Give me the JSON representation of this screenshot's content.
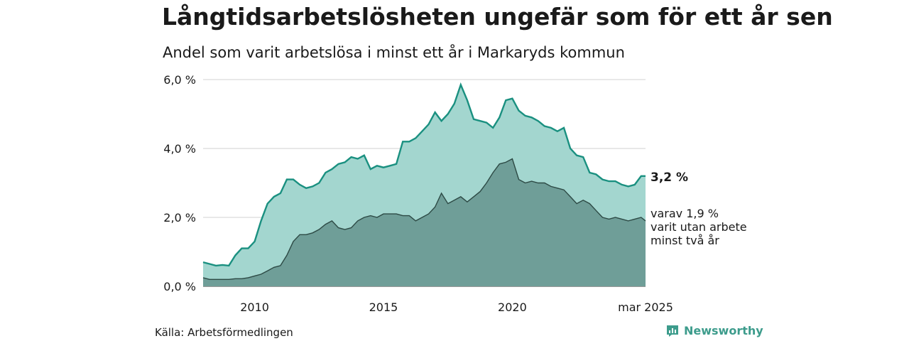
{
  "header": {
    "title": "Långtidsarbetslösheten ungefär som för ett år sen",
    "subtitle": "Andel som varit arbetslösa i minst ett år i Markaryds kommun"
  },
  "footer": {
    "source": "Källa: Arbetsförmedlingen",
    "brand": "Newsworthy"
  },
  "colors": {
    "total_fill": "#a3d6cf",
    "total_line": "#1a9080",
    "longterm_fill": "#6f9e98",
    "longterm_line": "#2d4a45",
    "grid": "#d9d9d9",
    "brand": "#3d9c8c"
  },
  "chart_data": {
    "type": "area",
    "x_unit": "year",
    "xlim": [
      2008.0,
      2025.17
    ],
    "ylim": [
      0,
      6
    ],
    "y_ticks": [
      {
        "value": 0,
        "label": "0,0 %"
      },
      {
        "value": 2,
        "label": "2,0 %"
      },
      {
        "value": 4,
        "label": "4,0 %"
      },
      {
        "value": 6,
        "label": "6,0 %"
      }
    ],
    "x_ticks": [
      {
        "value": 2010,
        "label": "2010"
      },
      {
        "value": 2015,
        "label": "2015"
      },
      {
        "value": 2020,
        "label": "2020"
      },
      {
        "value": 2025.17,
        "label": "mar 2025"
      }
    ],
    "grid": true,
    "series": [
      {
        "key": "total",
        "x": [
          2008.0,
          2008.25,
          2008.5,
          2008.75,
          2009.0,
          2009.25,
          2009.5,
          2009.75,
          2010.0,
          2010.25,
          2010.5,
          2010.75,
          2011.0,
          2011.25,
          2011.5,
          2011.75,
          2012.0,
          2012.25,
          2012.5,
          2012.75,
          2013.0,
          2013.25,
          2013.5,
          2013.75,
          2014.0,
          2014.25,
          2014.5,
          2014.75,
          2015.0,
          2015.25,
          2015.5,
          2015.75,
          2016.0,
          2016.25,
          2016.5,
          2016.75,
          2017.0,
          2017.25,
          2017.5,
          2017.75,
          2018.0,
          2018.25,
          2018.5,
          2018.75,
          2019.0,
          2019.25,
          2019.5,
          2019.75,
          2020.0,
          2020.25,
          2020.5,
          2020.75,
          2021.0,
          2021.25,
          2021.5,
          2021.75,
          2022.0,
          2022.25,
          2022.5,
          2022.75,
          2023.0,
          2023.25,
          2023.5,
          2023.75,
          2024.0,
          2024.25,
          2024.5,
          2024.75,
          2025.0,
          2025.17
        ],
        "values": [
          0.7,
          0.65,
          0.6,
          0.62,
          0.6,
          0.9,
          1.1,
          1.1,
          1.3,
          1.9,
          2.4,
          2.6,
          2.7,
          3.1,
          3.1,
          2.95,
          2.85,
          2.9,
          3.0,
          3.3,
          3.4,
          3.55,
          3.6,
          3.75,
          3.7,
          3.8,
          3.4,
          3.5,
          3.45,
          3.5,
          3.55,
          4.2,
          4.2,
          4.3,
          4.5,
          4.7,
          5.05,
          4.8,
          5.0,
          5.3,
          5.85,
          5.4,
          4.85,
          4.8,
          4.75,
          4.6,
          4.9,
          5.4,
          5.45,
          5.1,
          4.95,
          4.9,
          4.8,
          4.65,
          4.6,
          4.5,
          4.6,
          4.0,
          3.8,
          3.75,
          3.3,
          3.25,
          3.1,
          3.05,
          3.05,
          2.95,
          2.9,
          2.95,
          3.2,
          3.2
        ]
      },
      {
        "key": "longterm",
        "x": [
          2008.0,
          2008.25,
          2008.5,
          2008.75,
          2009.0,
          2009.25,
          2009.5,
          2009.75,
          2010.0,
          2010.25,
          2010.5,
          2010.75,
          2011.0,
          2011.25,
          2011.5,
          2011.75,
          2012.0,
          2012.25,
          2012.5,
          2012.75,
          2013.0,
          2013.25,
          2013.5,
          2013.75,
          2014.0,
          2014.25,
          2014.5,
          2014.75,
          2015.0,
          2015.25,
          2015.5,
          2015.75,
          2016.0,
          2016.25,
          2016.5,
          2016.75,
          2017.0,
          2017.25,
          2017.5,
          2017.75,
          2018.0,
          2018.25,
          2018.5,
          2018.75,
          2019.0,
          2019.25,
          2019.5,
          2019.75,
          2020.0,
          2020.25,
          2020.5,
          2020.75,
          2021.0,
          2021.25,
          2021.5,
          2021.75,
          2022.0,
          2022.25,
          2022.5,
          2022.75,
          2023.0,
          2023.25,
          2023.5,
          2023.75,
          2024.0,
          2024.25,
          2024.5,
          2024.75,
          2025.0,
          2025.17
        ],
        "values": [
          0.25,
          0.2,
          0.2,
          0.2,
          0.2,
          0.22,
          0.22,
          0.25,
          0.3,
          0.35,
          0.45,
          0.55,
          0.6,
          0.9,
          1.3,
          1.5,
          1.5,
          1.55,
          1.65,
          1.8,
          1.9,
          1.7,
          1.65,
          1.7,
          1.9,
          2.0,
          2.05,
          2.0,
          2.1,
          2.1,
          2.1,
          2.05,
          2.05,
          1.9,
          2.0,
          2.1,
          2.3,
          2.7,
          2.4,
          2.5,
          2.6,
          2.45,
          2.6,
          2.75,
          3.0,
          3.3,
          3.55,
          3.6,
          3.7,
          3.1,
          3.0,
          3.05,
          3.0,
          3.0,
          2.9,
          2.85,
          2.8,
          2.6,
          2.4,
          2.5,
          2.4,
          2.2,
          2.0,
          1.95,
          2.0,
          1.95,
          1.9,
          1.95,
          2.0,
          1.9
        ]
      }
    ],
    "end_labels": {
      "total": "3,2 %",
      "longterm_lines": [
        "varav 1,9 %",
        "varit utan arbete",
        "minst två år"
      ]
    }
  }
}
